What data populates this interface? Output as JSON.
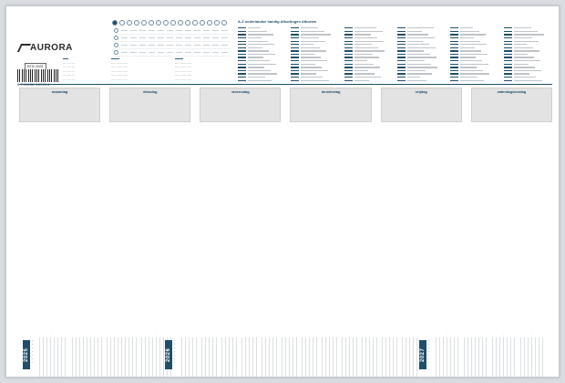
{
  "brand": {
    "name": "AURORA"
  },
  "product": {
    "sku": "BTB 2081",
    "barcode": "5 711008 100314"
  },
  "abbreviations_title": "A-Z nederlandse handig Afkortingen Afkorten",
  "weekdays": [
    "maandag",
    "dinsdag",
    "woensdag",
    "donderdag",
    "vrijdag",
    "zaterdag/zondag"
  ],
  "years": [
    "2025",
    "2026",
    "2027"
  ],
  "colors": {
    "accent": "#1f4e6b",
    "panel": "#e3e3e3"
  }
}
